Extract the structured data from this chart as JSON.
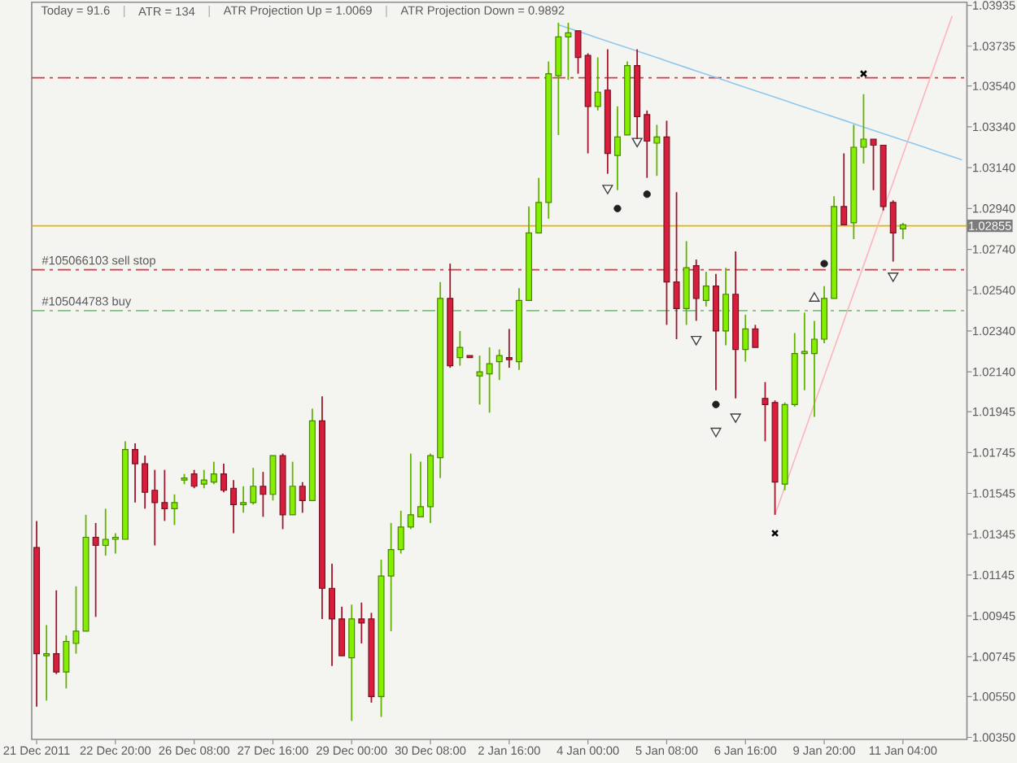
{
  "chart_data": {
    "type": "candlestick",
    "categories": [
      "21 Dec 2011",
      null,
      null,
      null,
      null,
      null,
      null,
      null,
      "22 Dec 20:00",
      null,
      null,
      null,
      null,
      null,
      null,
      null,
      "26 Dec 08:00",
      null,
      null,
      null,
      null,
      null,
      null,
      null,
      "27 Dec 16:00",
      null,
      null,
      null,
      null,
      null,
      null,
      null,
      "29 Dec 00:00",
      null,
      null,
      null,
      null,
      null,
      null,
      null,
      "30 Dec 08:00",
      null,
      null,
      null,
      null,
      null,
      null,
      null,
      "2 Jan 16:00",
      null,
      null,
      null,
      null,
      null,
      null,
      null,
      "4 Jan 00:00",
      null,
      null,
      null,
      null,
      null,
      null,
      null,
      "5 Jan 08:00",
      null,
      null,
      null,
      null,
      null,
      null,
      null,
      "6 Jan 16:00",
      null,
      null,
      null,
      null,
      null,
      null,
      null,
      "9 Jan 20:00",
      null,
      null,
      null,
      null,
      null,
      null,
      null,
      "11 Jan 04:00",
      null,
      null,
      null,
      null,
      null,
      null
    ],
    "ohlc": [
      [
        1.0128,
        1.0141,
        1.005,
        1.0076
      ],
      [
        1.0075,
        1.009,
        1.0053,
        1.0076
      ],
      [
        1.0076,
        1.0107,
        1.0066,
        1.0067
      ],
      [
        1.0067,
        1.0085,
        1.0059,
        1.0082
      ],
      [
        1.0081,
        1.0109,
        1.0076,
        1.0087
      ],
      [
        1.0087,
        1.0144,
        1.0087,
        1.0133
      ],
      [
        1.0133,
        1.014,
        1.0094,
        1.0129
      ],
      [
        1.0129,
        1.0147,
        1.0124,
        1.0132
      ],
      [
        1.0132,
        1.0135,
        1.0125,
        1.0133
      ],
      [
        1.0132,
        1.018,
        1.0132,
        1.0176
      ],
      [
        1.0176,
        1.0179,
        1.015,
        1.0169
      ],
      [
        1.0169,
        1.0173,
        1.0147,
        1.0155
      ],
      [
        1.0156,
        1.0166,
        1.0129,
        1.015
      ],
      [
        1.015,
        1.0166,
        1.0141,
        1.0147
      ],
      [
        1.0147,
        1.0154,
        1.0139,
        1.015
      ],
      [
        1.0161,
        1.0164,
        1.0159,
        1.0162
      ],
      [
        1.0164,
        1.0166,
        1.0157,
        1.0158
      ],
      [
        1.0159,
        1.0166,
        1.0157,
        1.0161
      ],
      [
        1.016,
        1.017,
        1.0159,
        1.0164
      ],
      [
        1.0164,
        1.0169,
        1.0155,
        1.0156
      ],
      [
        1.0157,
        1.0161,
        1.0135,
        1.0149
      ],
      [
        1.0149,
        1.0158,
        1.0145,
        1.015
      ],
      [
        1.015,
        1.0167,
        1.0149,
        1.0158
      ],
      [
        1.0158,
        1.0165,
        1.0143,
        1.0154
      ],
      [
        1.0154,
        1.0173,
        1.0151,
        1.0173
      ],
      [
        1.0173,
        1.0174,
        1.0137,
        1.0144
      ],
      [
        1.0144,
        1.017,
        1.0144,
        1.0158
      ],
      [
        1.0158,
        1.016,
        1.0145,
        1.0151
      ],
      [
        1.0151,
        1.0196,
        1.0151,
        1.019
      ],
      [
        1.019,
        1.0202,
        1.0093,
        1.0108
      ],
      [
        1.0108,
        1.012,
        1.007,
        1.0093
      ],
      [
        1.0093,
        1.0099,
        1.0075,
        1.0075
      ],
      [
        1.0074,
        1.01,
        1.0043,
        1.0093
      ],
      [
        1.0093,
        1.0101,
        1.0081,
        1.0091
      ],
      [
        1.0093,
        1.0096,
        1.0052,
        1.0055
      ],
      [
        1.0055,
        1.0122,
        1.0045,
        1.0114
      ],
      [
        1.0114,
        1.014,
        1.0087,
        1.0127
      ],
      [
        1.0127,
        1.0146,
        1.0125,
        1.0138
      ],
      [
        1.0138,
        1.0174,
        1.0137,
        1.0144
      ],
      [
        1.0143,
        1.017,
        1.0143,
        1.0148
      ],
      [
        1.0148,
        1.0174,
        1.014,
        1.0173
      ],
      [
        1.0172,
        1.0258,
        1.0162,
        1.025
      ],
      [
        1.025,
        1.0267,
        1.0216,
        1.0217
      ],
      [
        1.0221,
        1.0234,
        1.0217,
        1.0226
      ],
      [
        1.0222,
        1.0222,
        1.0221,
        1.0221
      ],
      [
        1.0212,
        1.0222,
        1.0198,
        1.0214
      ],
      [
        1.0213,
        1.0226,
        1.0194,
        1.0218
      ],
      [
        1.0219,
        1.0225,
        1.021,
        1.0222
      ],
      [
        1.0221,
        1.0235,
        1.0216,
        1.022
      ],
      [
        1.0219,
        1.0255,
        1.0215,
        1.0249
      ],
      [
        1.0249,
        1.0295,
        1.0249,
        1.0282
      ],
      [
        1.0282,
        1.0309,
        1.0282,
        1.0297
      ],
      [
        1.0297,
        1.0366,
        1.0289,
        1.036
      ],
      [
        1.0359,
        1.0385,
        1.033,
        1.0378
      ],
      [
        1.0378,
        1.0385,
        1.0357,
        1.038
      ],
      [
        1.0381,
        1.0381,
        1.036,
        1.0368
      ],
      [
        1.0369,
        1.037,
        1.0321,
        1.0344
      ],
      [
        1.0344,
        1.0368,
        1.0342,
        1.0351
      ],
      [
        1.0352,
        1.0372,
        1.0311,
        1.0321
      ],
      [
        1.032,
        1.0344,
        1.0303,
        1.0329
      ],
      [
        1.033,
        1.0366,
        1.033,
        1.0364
      ],
      [
        1.0364,
        1.0372,
        1.0328,
        1.0339
      ],
      [
        1.034,
        1.0342,
        1.0309,
        1.0327
      ],
      [
        1.0326,
        1.0335,
        1.031,
        1.0329
      ],
      [
        1.0329,
        1.0337,
        1.0237,
        1.0258
      ],
      [
        1.0258,
        1.0302,
        1.023,
        1.0245
      ],
      [
        1.0245,
        1.0278,
        1.0237,
        1.0265
      ],
      [
        1.0266,
        1.0269,
        1.0239,
        1.025
      ],
      [
        1.0249,
        1.0263,
        1.0246,
        1.0256
      ],
      [
        1.0256,
        1.0262,
        1.0205,
        1.0234
      ],
      [
        1.0234,
        1.0265,
        1.0227,
        1.0252
      ],
      [
        1.0252,
        1.0273,
        1.0201,
        1.0225
      ],
      [
        1.0225,
        1.0242,
        1.0219,
        1.0235
      ],
      [
        1.0235,
        1.0237,
        1.0226,
        1.0226
      ],
      [
        1.0201,
        1.0209,
        1.018,
        1.0198
      ],
      [
        1.0199,
        1.02,
        1.0144,
        1.016
      ],
      [
        1.0159,
        1.0199,
        1.0156,
        1.0198
      ],
      [
        1.0198,
        1.0233,
        1.0197,
        1.0223
      ],
      [
        1.0223,
        1.0243,
        1.0205,
        1.0224
      ],
      [
        1.0223,
        1.0239,
        1.0192,
        1.023
      ],
      [
        1.023,
        1.0256,
        1.0228,
        1.025
      ],
      [
        1.025,
        1.03,
        1.025,
        1.0295
      ],
      [
        1.0295,
        1.0321,
        1.0286,
        1.0286
      ],
      [
        1.0287,
        1.0335,
        1.0279,
        1.0324
      ],
      [
        1.0324,
        1.035,
        1.0316,
        1.0328
      ],
      [
        1.0328,
        1.0328,
        1.0303,
        1.0325
      ],
      [
        1.0325,
        1.0325,
        1.0293,
        1.0295
      ],
      [
        1.0297,
        1.0298,
        1.0268,
        1.0282
      ],
      [
        1.0284,
        1.0287,
        1.0279,
        1.0286
      ],
      null,
      null,
      null,
      null,
      null,
      null
    ],
    "colors": [
      "#d81e3c",
      "#84f000",
      "#d81e3c",
      "#84f000",
      "#84f000",
      "#84f000",
      "#d81e3c",
      "#84f000",
      "#84f000",
      "#84f000",
      "#d81e3c",
      "#d81e3c",
      "#d81e3c",
      "#d81e3c",
      "#84f000",
      "#84f000",
      "#d81e3c",
      "#84f000",
      "#84f000",
      "#d81e3c",
      "#d81e3c",
      "#84f000",
      "#84f000",
      "#d81e3c",
      "#84f000",
      "#d81e3c",
      "#84f000",
      "#d81e3c",
      "#84f000",
      "#d81e3c",
      "#d81e3c",
      "#d81e3c",
      "#84f000",
      "#d81e3c",
      "#d81e3c",
      "#84f000",
      "#84f000",
      "#84f000",
      "#84f000",
      "#84f000",
      "#84f000",
      "#84f000",
      "#d81e3c",
      "#84f000",
      "#d81e3c",
      "#84f000",
      "#84f000",
      "#84f000",
      "#d81e3c",
      "#84f000",
      "#84f000",
      "#84f000",
      "#84f000",
      "#84f000",
      "#84f000",
      "#d81e3c",
      "#d81e3c",
      "#84f000",
      "#d81e3c",
      "#84f000",
      "#84f000",
      "#d81e3c",
      "#d81e3c",
      "#84f000",
      "#d81e3c",
      "#d81e3c",
      "#84f000",
      "#d81e3c",
      "#84f000",
      "#d81e3c",
      "#84f000",
      "#d81e3c",
      "#84f000",
      "#d81e3c",
      "#d81e3c",
      "#d81e3c",
      "#84f000",
      "#84f000",
      "#84f000",
      "#84f000",
      "#84f000",
      "#84f000",
      "#d81e3c",
      "#84f000",
      "#84f000",
      "#d81e3c",
      "#d81e3c",
      "#d81e3c",
      "#84f000",
      null,
      null,
      null,
      null,
      null,
      null
    ],
    "ylim": [
      1.0034,
      1.0395
    ],
    "yticks": [
      1.03935,
      1.03735,
      {
        "value": 1.0354,
        "label": "1.03540"
      },
      {
        "value": 1.0334,
        "label": "1.03340"
      },
      {
        "value": 1.0314,
        "label": "1.03140"
      },
      {
        "value": 1.0294,
        "label": "1.02940"
      },
      {
        "value": 1.0274,
        "label": "1.02740"
      },
      {
        "value": 1.0254,
        "label": "1.02540"
      },
      {
        "value": 1.0234,
        "label": "1.02340"
      },
      {
        "value": 1.0214,
        "label": "1.02140"
      },
      1.01945,
      1.01745,
      1.01545,
      1.01345,
      1.01145,
      1.00945,
      1.00745,
      {
        "value": 1.0055,
        "label": "1.00550"
      },
      {
        "value": 1.0035,
        "label": "1.00350"
      }
    ],
    "ref_lines": [
      {
        "axis": "y",
        "value": 1.0358,
        "color": "#e0383c",
        "line_style": "dashdot"
      },
      {
        "axis": "y",
        "value": 1.0264,
        "label": "#105066103 sell stop",
        "color": "#e0383c",
        "line_style": "dashdot"
      },
      {
        "axis": "y",
        "value": 1.0244,
        "label": "#105044783 buy",
        "color": "#7cc47c",
        "line_style": "dashdot"
      },
      {
        "axis": "y",
        "value": 1.02855,
        "label": "1.02855",
        "color": "#e8b400",
        "line_style": "solid"
      }
    ],
    "series": [
      {
        "type": "line",
        "color": "#8ec8ee",
        "line_style": "solid",
        "values": [
          null,
          null,
          null,
          null,
          null,
          null,
          null,
          null,
          null,
          null,
          null,
          null,
          null,
          null,
          null,
          null,
          null,
          null,
          null,
          null,
          null,
          null,
          null,
          null,
          null,
          null,
          null,
          null,
          null,
          null,
          null,
          null,
          null,
          null,
          null,
          null,
          null,
          null,
          null,
          null,
          null,
          null,
          null,
          null,
          null,
          null,
          null,
          null,
          null,
          null,
          null,
          null,
          null,
          1.0384,
          1.03824,
          1.03808,
          1.03792,
          1.03775,
          1.03759,
          1.03743,
          1.03727,
          1.03711,
          1.03695,
          1.03679,
          1.03662,
          1.03646,
          1.0363,
          1.03614,
          1.03598,
          1.03582,
          1.03566,
          1.03549,
          1.03533,
          1.03517,
          1.03501,
          1.03485,
          1.03469,
          1.03452,
          1.03436,
          1.0342,
          1.03404,
          1.03388,
          1.03372,
          1.03356,
          1.03339,
          1.03323,
          1.03307,
          1.03291,
          1.03275,
          1.03259,
          1.03243,
          1.03226,
          1.0321,
          1.03194,
          1.03178
        ]
      },
      {
        "type": "line",
        "color": "#ffb4bc",
        "line_style": "solid",
        "values": [
          null,
          null,
          null,
          null,
          null,
          null,
          null,
          null,
          null,
          null,
          null,
          null,
          null,
          null,
          null,
          null,
          null,
          null,
          null,
          null,
          null,
          null,
          null,
          null,
          null,
          null,
          null,
          null,
          null,
          null,
          null,
          null,
          null,
          null,
          null,
          null,
          null,
          null,
          null,
          null,
          null,
          null,
          null,
          null,
          null,
          null,
          null,
          null,
          null,
          null,
          null,
          null,
          null,
          null,
          null,
          null,
          null,
          null,
          null,
          null,
          null,
          null,
          null,
          null,
          null,
          null,
          null,
          null,
          null,
          null,
          null,
          null,
          null,
          null,
          null,
          1.0144,
          1.01576,
          1.01711,
          1.01847,
          1.01983,
          1.02119,
          1.02254,
          1.0239,
          1.02526,
          1.02661,
          1.02797,
          1.02933,
          1.03068,
          1.03204,
          1.0334,
          1.03476,
          1.03611,
          1.03747,
          1.03883,
          null
        ]
      },
      {
        "type": "scatter",
        "marker": "cross",
        "color": "#000000",
        "values": [
          null,
          null,
          null,
          null,
          null,
          null,
          null,
          null,
          null,
          null,
          null,
          null,
          null,
          null,
          null,
          null,
          null,
          null,
          null,
          null,
          null,
          null,
          null,
          null,
          null,
          null,
          null,
          null,
          null,
          null,
          null,
          null,
          null,
          null,
          null,
          null,
          null,
          null,
          null,
          null,
          null,
          null,
          null,
          null,
          null,
          null,
          null,
          null,
          null,
          null,
          null,
          null,
          null,
          null,
          null,
          null,
          null,
          null,
          null,
          null,
          null,
          null,
          null,
          null,
          null,
          null,
          null,
          null,
          null,
          null,
          null,
          null,
          null,
          null,
          null,
          1.0135,
          null,
          null,
          null,
          null,
          null,
          null,
          null,
          null,
          1.036,
          null,
          null,
          null,
          null,
          null,
          null,
          null,
          null,
          null,
          null
        ]
      },
      {
        "type": "scatter",
        "marker": "triangle",
        "color": "#404040",
        "values": [
          null,
          null,
          null,
          null,
          null,
          null,
          null,
          null,
          null,
          null,
          null,
          null,
          null,
          null,
          null,
          null,
          null,
          null,
          null,
          null,
          null,
          null,
          null,
          null,
          null,
          null,
          null,
          null,
          null,
          null,
          null,
          null,
          null,
          null,
          null,
          null,
          null,
          null,
          null,
          null,
          null,
          null,
          null,
          null,
          null,
          null,
          null,
          null,
          null,
          null,
          null,
          null,
          null,
          null,
          null,
          null,
          null,
          null,
          1.0304,
          null,
          null,
          1.0327,
          null,
          null,
          null,
          null,
          null,
          1.023,
          null,
          1.0185,
          null,
          1.0192,
          null,
          null,
          null,
          null,
          null,
          null,
          null,
          1.025,
          null,
          null,
          null,
          null,
          null,
          null,
          null,
          1.0261,
          null,
          null,
          null,
          null,
          null,
          null,
          null
        ]
      },
      {
        "type": "scatter",
        "marker": "circle",
        "color": "#202020",
        "values": [
          null,
          null,
          null,
          null,
          null,
          null,
          null,
          null,
          null,
          null,
          null,
          null,
          null,
          null,
          null,
          null,
          null,
          null,
          null,
          null,
          null,
          null,
          null,
          null,
          null,
          null,
          null,
          null,
          null,
          null,
          null,
          null,
          null,
          null,
          null,
          null,
          null,
          null,
          null,
          null,
          null,
          null,
          null,
          null,
          null,
          null,
          null,
          null,
          null,
          null,
          null,
          null,
          null,
          null,
          null,
          null,
          null,
          null,
          null,
          1.0294,
          null,
          null,
          1.0301,
          null,
          null,
          null,
          null,
          null,
          null,
          1.0198,
          null,
          null,
          null,
          null,
          null,
          null,
          null,
          null,
          null,
          null,
          1.0267,
          null,
          null,
          null,
          null,
          null,
          null,
          null,
          null,
          null,
          null,
          null,
          null,
          null,
          null
        ]
      }
    ],
    "annotations": [
      "Today = 91.6",
      "ATR = 134",
      "ATR Projection Up = 1.0069",
      "ATR Projection Down = 0.9892"
    ]
  }
}
